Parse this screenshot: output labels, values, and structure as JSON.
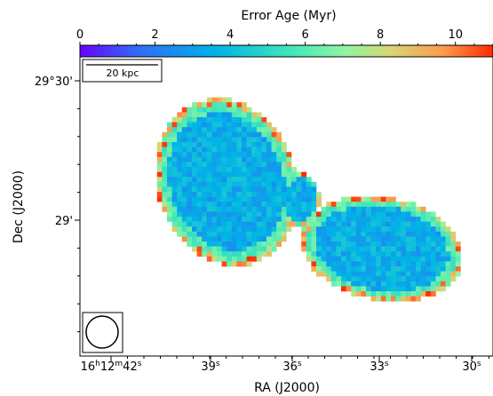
{
  "chart_data": {
    "type": "heatmap",
    "colorbar": {
      "label": "Error Age (Myr)",
      "ticks": [
        0,
        2,
        4,
        6,
        8,
        10
      ],
      "range": [
        0,
        11
      ],
      "colormap": "rainbow",
      "colors": [
        "#6a00ff",
        "#2f6df6",
        "#00b4e6",
        "#46e8b8",
        "#8ff5a2",
        "#d6d676",
        "#ff9a4c",
        "#ff2a00"
      ]
    },
    "xaxis": {
      "label": "RA (J2000)",
      "ticks": [
        "16h12m42s",
        "39s",
        "36s",
        "33s",
        "30s"
      ],
      "tick_values_sec": [
        42,
        39,
        36,
        33,
        30
      ]
    },
    "yaxis": {
      "label": "Dec (J2000)",
      "ticks": [
        "29°30'",
        "29'"
      ],
      "tick_values_arcmin": [
        30,
        29
      ]
    },
    "scale_bar": {
      "label": "20 kpc"
    },
    "beam": "circle",
    "map": {
      "description_values": "Error age distribution across the source in Myr; lobes mostly 2.5–5 Myr with edges reaching ~6–11 Myr",
      "typical_core_myr": 3.5,
      "typical_edge_myr": 6.5,
      "max_myr": 11
    }
  }
}
